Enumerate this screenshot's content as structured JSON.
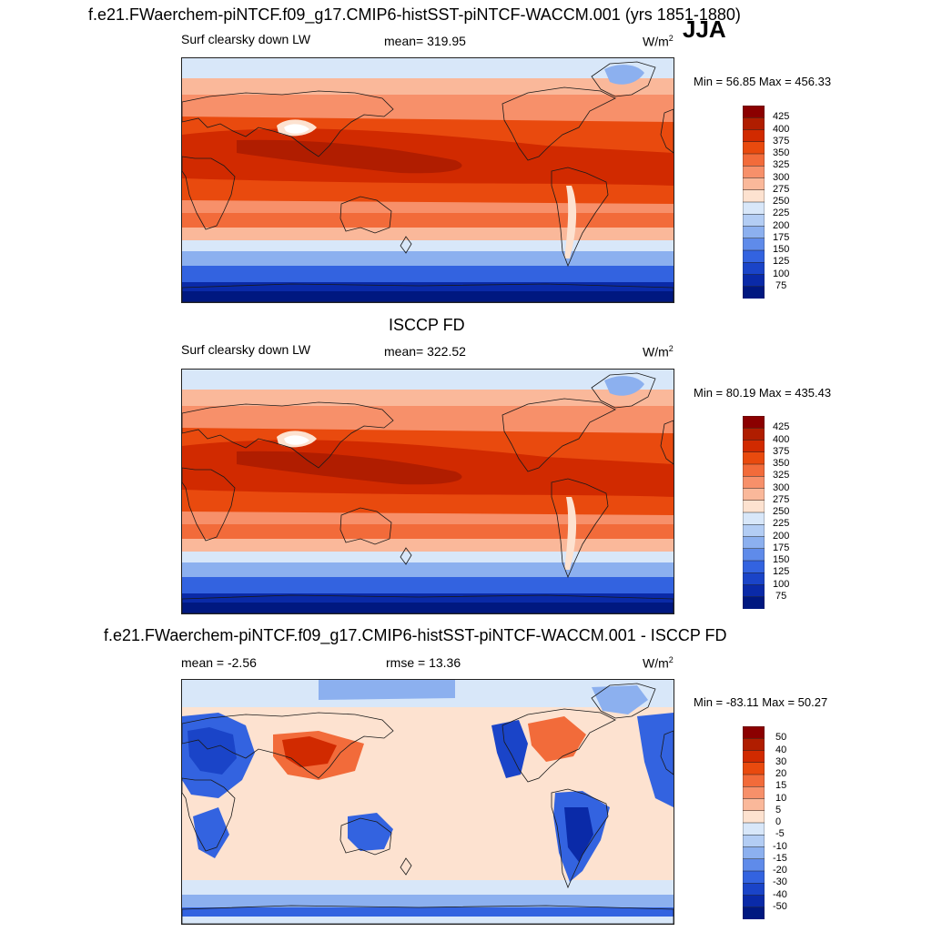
{
  "header": {
    "title": "f.e21.FWaerchem-piNTCF.f09_g17.CMIP6-histSST-piNTCF-WACCM.001 (yrs 1851-1880)",
    "season": "JJA"
  },
  "panels": [
    {
      "title": "",
      "left_label": "Surf clearsky down LW",
      "center_label": "mean= 319.95",
      "units": "W/m",
      "units_sup": "2",
      "minmax": "Min =  56.85 Max = 456.33",
      "colorbar": {
        "labels": [
          "425",
          "400",
          "375",
          "350",
          "325",
          "300",
          "275",
          "250",
          "225",
          "200",
          "175",
          "150",
          "125",
          "100",
          "75"
        ],
        "colors": [
          "#8b0000",
          "#b01d00",
          "#d12a00",
          "#e94a0e",
          "#f26b3a",
          "#f7906a",
          "#fab89a",
          "#fde2d0",
          "#d8e7f9",
          "#b3cdf4",
          "#8cb0ef",
          "#5f8bea",
          "#3363e0",
          "#1a44c8",
          "#0a2aa8",
          "#001880"
        ]
      },
      "map_kind": "absolute"
    },
    {
      "title": "ISCCP FD",
      "left_label": "Surf clearsky down LW",
      "center_label": "mean= 322.52",
      "units": "W/m",
      "units_sup": "2",
      "minmax": "Min =  80.19 Max = 435.43",
      "colorbar": {
        "labels": [
          "425",
          "400",
          "375",
          "350",
          "325",
          "300",
          "275",
          "250",
          "225",
          "200",
          "175",
          "150",
          "125",
          "100",
          "75"
        ],
        "colors": [
          "#8b0000",
          "#b01d00",
          "#d12a00",
          "#e94a0e",
          "#f26b3a",
          "#f7906a",
          "#fab89a",
          "#fde2d0",
          "#d8e7f9",
          "#b3cdf4",
          "#8cb0ef",
          "#5f8bea",
          "#3363e0",
          "#1a44c8",
          "#0a2aa8",
          "#001880"
        ]
      },
      "map_kind": "absolute"
    },
    {
      "title": "f.e21.FWaerchem-piNTCF.f09_g17.CMIP6-histSST-piNTCF-WACCM.001 - ISCCP FD",
      "left_label": "mean =  -2.56",
      "center_label": "rmse =  13.36",
      "units": "W/m",
      "units_sup": "2",
      "minmax": "Min = -83.11 Max =  50.27",
      "colorbar": {
        "labels": [
          "50",
          "40",
          "30",
          "20",
          "15",
          "10",
          "5",
          "0",
          "-5",
          "-10",
          "-15",
          "-20",
          "-30",
          "-40",
          "-50"
        ],
        "colors": [
          "#8b0000",
          "#b01d00",
          "#d12a00",
          "#e94a0e",
          "#f26b3a",
          "#f7906a",
          "#fab89a",
          "#fde2d0",
          "#d8e7f9",
          "#b3cdf4",
          "#8cb0ef",
          "#5f8bea",
          "#3363e0",
          "#1a44c8",
          "#0a2aa8",
          "#001880"
        ]
      },
      "map_kind": "difference"
    }
  ]
}
